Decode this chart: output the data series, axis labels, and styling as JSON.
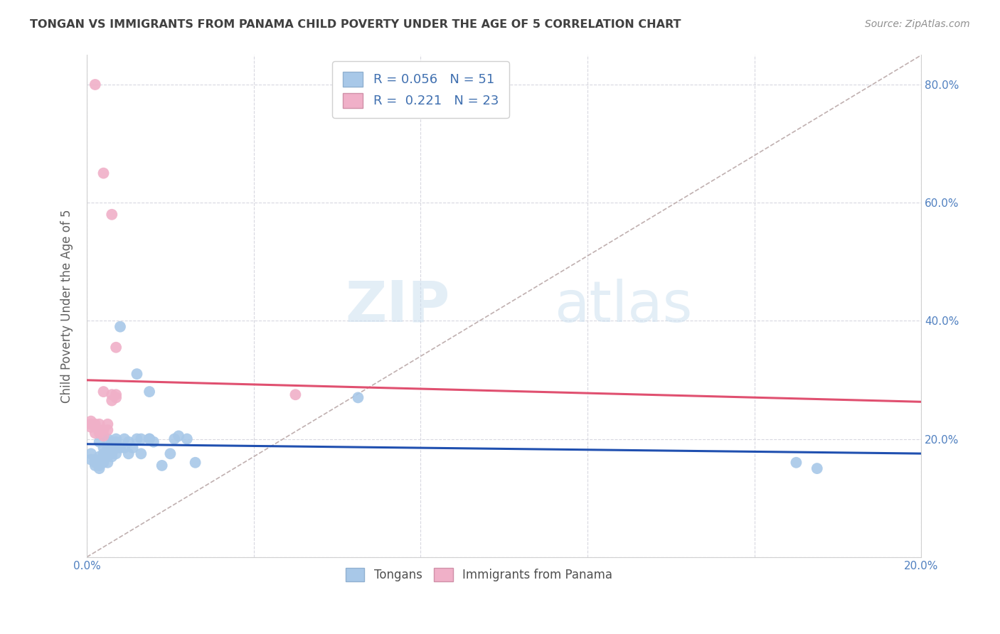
{
  "title": "TONGAN VS IMMIGRANTS FROM PANAMA CHILD POVERTY UNDER THE AGE OF 5 CORRELATION CHART",
  "source": "Source: ZipAtlas.com",
  "ylabel": "Child Poverty Under the Age of 5",
  "xlim": [
    0.0,
    0.2
  ],
  "ylim": [
    0.0,
    0.85
  ],
  "xticks": [
    0.0,
    0.04,
    0.08,
    0.12,
    0.16,
    0.2
  ],
  "yticks": [
    0.0,
    0.2,
    0.4,
    0.6,
    0.8
  ],
  "xticklabels": [
    "0.0%",
    "",
    "",
    "",
    "",
    "20.0%"
  ],
  "yticklabels_right": [
    "",
    "20.0%",
    "40.0%",
    "60.0%",
    "80.0%"
  ],
  "blue_R": 0.056,
  "blue_N": 51,
  "pink_R": 0.221,
  "pink_N": 23,
  "blue_color": "#a8c8e8",
  "pink_color": "#f0b0c8",
  "blue_line_color": "#2050b0",
  "pink_line_color": "#e05070",
  "diag_line_color": "#c0b0b0",
  "grid_color": "#d8d8e0",
  "title_color": "#404040",
  "blue_scatter": [
    [
      0.001,
      0.175
    ],
    [
      0.001,
      0.165
    ],
    [
      0.002,
      0.155
    ],
    [
      0.002,
      0.165
    ],
    [
      0.002,
      0.16
    ],
    [
      0.003,
      0.17
    ],
    [
      0.003,
      0.155
    ],
    [
      0.003,
      0.15
    ],
    [
      0.003,
      0.195
    ],
    [
      0.004,
      0.175
    ],
    [
      0.004,
      0.165
    ],
    [
      0.004,
      0.185
    ],
    [
      0.004,
      0.16
    ],
    [
      0.005,
      0.175
    ],
    [
      0.005,
      0.16
    ],
    [
      0.005,
      0.2
    ],
    [
      0.005,
      0.18
    ],
    [
      0.005,
      0.185
    ],
    [
      0.006,
      0.17
    ],
    [
      0.006,
      0.195
    ],
    [
      0.006,
      0.185
    ],
    [
      0.006,
      0.175
    ],
    [
      0.007,
      0.2
    ],
    [
      0.007,
      0.185
    ],
    [
      0.007,
      0.175
    ],
    [
      0.007,
      0.195
    ],
    [
      0.007,
      0.185
    ],
    [
      0.008,
      0.39
    ],
    [
      0.008,
      0.185
    ],
    [
      0.009,
      0.2
    ],
    [
      0.009,
      0.185
    ],
    [
      0.01,
      0.175
    ],
    [
      0.01,
      0.195
    ],
    [
      0.011,
      0.185
    ],
    [
      0.012,
      0.31
    ],
    [
      0.012,
      0.2
    ],
    [
      0.013,
      0.175
    ],
    [
      0.013,
      0.2
    ],
    [
      0.015,
      0.2
    ],
    [
      0.015,
      0.28
    ],
    [
      0.015,
      0.2
    ],
    [
      0.016,
      0.195
    ],
    [
      0.018,
      0.155
    ],
    [
      0.02,
      0.175
    ],
    [
      0.021,
      0.2
    ],
    [
      0.022,
      0.205
    ],
    [
      0.024,
      0.2
    ],
    [
      0.026,
      0.16
    ],
    [
      0.065,
      0.27
    ],
    [
      0.17,
      0.16
    ],
    [
      0.175,
      0.15
    ]
  ],
  "pink_scatter": [
    [
      0.001,
      0.23
    ],
    [
      0.001,
      0.225
    ],
    [
      0.001,
      0.22
    ],
    [
      0.002,
      0.225
    ],
    [
      0.002,
      0.22
    ],
    [
      0.002,
      0.21
    ],
    [
      0.003,
      0.225
    ],
    [
      0.003,
      0.215
    ],
    [
      0.003,
      0.21
    ],
    [
      0.004,
      0.215
    ],
    [
      0.004,
      0.205
    ],
    [
      0.004,
      0.28
    ],
    [
      0.005,
      0.225
    ],
    [
      0.005,
      0.215
    ],
    [
      0.006,
      0.275
    ],
    [
      0.006,
      0.265
    ],
    [
      0.007,
      0.355
    ],
    [
      0.007,
      0.275
    ],
    [
      0.007,
      0.27
    ],
    [
      0.05,
      0.275
    ],
    [
      0.002,
      0.8
    ],
    [
      0.004,
      0.65
    ],
    [
      0.006,
      0.58
    ]
  ],
  "watermark_zip": "ZIP",
  "watermark_atlas": "atlas",
  "legend_blue_label": "Tongans",
  "legend_pink_label": "Immigrants from Panama"
}
